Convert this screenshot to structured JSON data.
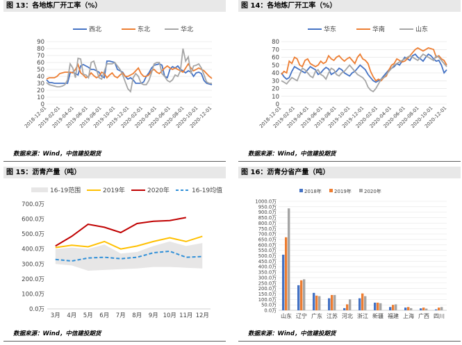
{
  "panels": [
    {
      "title": "图 13：各地炼厂开工率（%）",
      "source": "数据来源：Wind，中信建投期货"
    },
    {
      "title": "图 14：各地炼厂开工率（%）",
      "source": "数据来源：Wind，中信建投期货"
    },
    {
      "title": "图 15：沥青产量（吨）",
      "source": "数据来源：Wind，中信建投期货"
    },
    {
      "title": "图 16：沥青分省产量（吨）",
      "source": "数据来源：Wind，中信建投期货"
    }
  ],
  "chart_data": [
    {
      "type": "line",
      "title": "图 13：各地炼厂开工率（%）",
      "ylim": [
        0,
        90
      ],
      "yticks": [
        "0",
        "10",
        "20",
        "30",
        "40",
        "50",
        "60",
        "70",
        "80",
        "90"
      ],
      "xticks": [
        "2018-12-01",
        "2019-02-01",
        "2019-04-01",
        "2019-06-01",
        "2019-08-01",
        "2019-10-01",
        "2019-12-01",
        "2020-02-01",
        "2020-04-01",
        "2020-06-01",
        "2020-08-01",
        "2020-10-01",
        "2020-12-01"
      ],
      "grid": true,
      "legend": "top",
      "series": [
        {
          "name": "西北",
          "color": "#4472c4",
          "values": [
            35,
            31,
            31,
            30,
            30,
            30,
            30,
            30,
            30,
            45,
            46,
            44,
            42,
            55,
            57,
            55,
            53,
            50,
            50,
            48,
            46,
            40,
            38,
            62,
            62,
            61,
            60,
            50,
            48,
            46,
            40,
            36,
            38,
            35,
            30,
            30,
            30,
            32,
            40,
            45,
            52,
            56,
            57,
            58,
            56,
            40,
            38,
            50,
            54,
            52,
            55,
            50,
            48,
            45,
            48,
            46,
            40,
            45,
            46,
            44,
            34,
            30,
            29,
            28
          ]
        },
        {
          "name": "东北",
          "color": "#ed7d31",
          "values": [
            36,
            38,
            38,
            38,
            40,
            44,
            45,
            46,
            46,
            46,
            45,
            50,
            57,
            45,
            42,
            38,
            40,
            45,
            41,
            38,
            40,
            46,
            44,
            38,
            42,
            45,
            40,
            38,
            42,
            45,
            40,
            40,
            42,
            44,
            48,
            52,
            44,
            40,
            40,
            42,
            48,
            50,
            46,
            44,
            48,
            52,
            55,
            52,
            50,
            52,
            50,
            48,
            46,
            52,
            58,
            52,
            48,
            50,
            52,
            50,
            48,
            44,
            40,
            37
          ]
        },
        {
          "name": "华北",
          "color": "#a5a5a5",
          "values": [
            31,
            28,
            27,
            26,
            25,
            25,
            26,
            28,
            35,
            58,
            52,
            38,
            66,
            65,
            43,
            42,
            38,
            60,
            62,
            50,
            38,
            36,
            47,
            58,
            58,
            58,
            60,
            55,
            50,
            42,
            32,
            22,
            18,
            38,
            44,
            40,
            30,
            28,
            28,
            34,
            45,
            58,
            60,
            60,
            44,
            40,
            34,
            32,
            35,
            42,
            40,
            48,
            80,
            62,
            68,
            44,
            55,
            56,
            58,
            52,
            42,
            32,
            30,
            30
          ]
        }
      ]
    },
    {
      "type": "line",
      "title": "图 14：各地炼厂开工率（%）",
      "ylim": [
        0,
        80
      ],
      "yticks": [
        "0",
        "10",
        "20",
        "30",
        "40",
        "50",
        "60",
        "70",
        "80"
      ],
      "xticks": [
        "2018-12-01",
        "2019-02-01",
        "2019-04-01",
        "2019-06-01",
        "2019-08-01",
        "2019-10-01",
        "2019-12-01",
        "2020-02-01",
        "2020-04-01",
        "2020-06-01",
        "2020-08-01",
        "2020-10-01",
        "2020-12-01"
      ],
      "grid": true,
      "legend": "top",
      "series": [
        {
          "name": "华东",
          "color": "#4472c4",
          "values": [
            40,
            35,
            32,
            34,
            42,
            48,
            46,
            44,
            42,
            40,
            44,
            48,
            46,
            44,
            38,
            40,
            44,
            47,
            45,
            38,
            40,
            42,
            46,
            44,
            40,
            38,
            36,
            40,
            42,
            46,
            50,
            47,
            44,
            38,
            34,
            30,
            28,
            30,
            32,
            36,
            40,
            44,
            46,
            48,
            52,
            50,
            55,
            60,
            58,
            56,
            62,
            64,
            60,
            58,
            55,
            60,
            64,
            62,
            58,
            55,
            56,
            50,
            40,
            44
          ]
        },
        {
          "name": "华南",
          "color": "#ed7d31",
          "values": [
            38,
            42,
            40,
            55,
            52,
            60,
            58,
            50,
            48,
            56,
            58,
            52,
            50,
            48,
            50,
            55,
            52,
            54,
            62,
            58,
            56,
            60,
            62,
            58,
            55,
            58,
            60,
            56,
            52,
            60,
            64,
            58,
            56,
            52,
            42,
            35,
            30,
            32,
            30,
            34,
            36,
            44,
            50,
            52,
            58,
            56,
            54,
            55,
            58,
            62,
            66,
            70,
            72,
            70,
            68,
            70,
            72,
            71,
            70,
            60,
            62,
            58,
            56,
            50
          ]
        },
        {
          "name": "山东",
          "color": "#a5a5a5",
          "values": [
            30,
            28,
            26,
            30,
            34,
            32,
            30,
            38,
            46,
            44,
            40,
            36,
            34,
            42,
            44,
            38,
            36,
            32,
            40,
            46,
            44,
            38,
            36,
            40,
            42,
            46,
            50,
            46,
            42,
            38,
            36,
            34,
            30,
            22,
            18,
            16,
            20,
            26,
            32,
            34,
            38,
            42,
            46,
            50,
            52,
            54,
            56,
            58,
            60,
            62,
            60,
            58,
            56,
            60,
            64,
            62,
            60,
            58,
            56,
            62,
            60,
            56,
            52,
            48
          ]
        }
      ]
    },
    {
      "type": "line",
      "title": "图 15：沥青产量（吨）",
      "categories": [
        "3月",
        "4月",
        "5月",
        "6月",
        "7月",
        "8月",
        "9月",
        "10月",
        "11月",
        "12月"
      ],
      "yticks": [
        "0.0万",
        "100.0万",
        "200.0万",
        "300.0万",
        "400.0万",
        "500.0万",
        "600.0万",
        "700.0万"
      ],
      "ylim": [
        0,
        700
      ],
      "legend": "top",
      "band": {
        "name": "16-19范围",
        "color": "#e7e6e6",
        "low": [
          300,
          290,
          255,
          260,
          265,
          270,
          280,
          280,
          275,
          270
        ],
        "high": [
          400,
          410,
          400,
          430,
          370,
          380,
          420,
          450,
          420,
          440
        ]
      },
      "series": [
        {
          "name": "2019年",
          "color": "#ffc000",
          "values": [
            410,
            425,
            415,
            450,
            400,
            420,
            450,
            475,
            450,
            485
          ]
        },
        {
          "name": "2020年",
          "color": "#c00000",
          "values": [
            420,
            485,
            565,
            545,
            510,
            570,
            585,
            590,
            610,
            null
          ]
        },
        {
          "name": "16-19均值",
          "color": "#2f8fd8",
          "dashed": true,
          "values": [
            330,
            320,
            340,
            345,
            335,
            345,
            375,
            385,
            345,
            350
          ]
        }
      ]
    },
    {
      "type": "bar",
      "title": "图 16：沥青分省产量（吨）",
      "categories": [
        "山东",
        "辽宁",
        "广东",
        "江苏",
        "河北",
        "浙江",
        "新疆",
        "福建",
        "上海",
        "广西",
        "四川"
      ],
      "yticks": [
        "0.0万",
        "50.0万",
        "100.0万",
        "150.0万",
        "200.0万",
        "250.0万",
        "300.0万",
        "350.0万",
        "400.0万",
        "450.0万",
        "500.0万",
        "550.0万",
        "600.0万",
        "650.0万",
        "700.0万",
        "750.0万",
        "800.0万",
        "850.0万",
        "900.0万",
        "950.0万",
        "1000.0万"
      ],
      "ylim": [
        0,
        1000
      ],
      "legend": "top",
      "series": [
        {
          "name": "2018年",
          "color": "#4472c4",
          "values": [
            510,
            230,
            160,
            110,
            20,
            110,
            70,
            30,
            25,
            18,
            8
          ]
        },
        {
          "name": "2019年",
          "color": "#ed7d31",
          "values": [
            670,
            275,
            135,
            140,
            55,
            155,
            70,
            50,
            30,
            25,
            25
          ]
        },
        {
          "name": "2020年",
          "color": "#a5a5a5",
          "values": [
            935,
            285,
            130,
            140,
            100,
            130,
            65,
            55,
            20,
            15,
            30
          ]
        }
      ]
    }
  ]
}
